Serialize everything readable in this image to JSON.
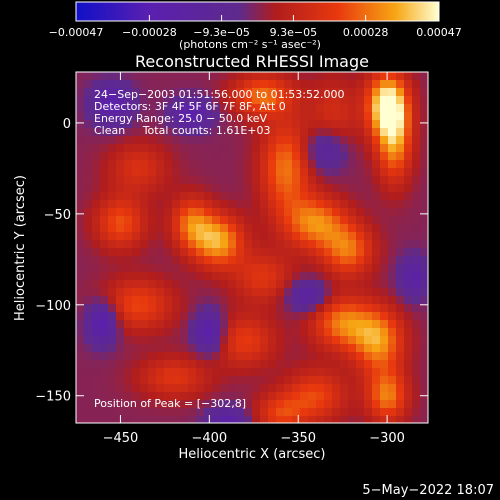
{
  "chart_data": {
    "type": "heatmap",
    "title": "Reconstructed RHESSI Image",
    "xlabel": "Heliocentric X (arcsec)",
    "ylabel": "Heliocentric Y (arcsec)",
    "xlim": [
      -475,
      -277
    ],
    "ylim": [
      -165,
      28
    ],
    "x_ticks": [
      -450,
      -400,
      -350,
      -300
    ],
    "y_ticks": [
      0,
      -50,
      -100,
      -150
    ],
    "x_tick_labels": [
      "−450",
      "−400",
      "−350",
      "−300"
    ],
    "y_tick_labels": [
      "0",
      "−50",
      "−100",
      "−150"
    ],
    "colorbar": {
      "range": [
        -0.00047,
        0.00047
      ],
      "ticks": [
        -0.00047,
        -0.00028,
        -9.3e-05,
        9.3e-05,
        0.00028,
        0.00047
      ],
      "tick_labels": [
        "−0.00047",
        "−0.00028",
        "−9.3e−05",
        "9.3e−05",
        "0.00028",
        "0.00047"
      ],
      "label": "(photons cm⁻² s⁻¹ asec⁻²)",
      "colors": [
        "#1010c8",
        "#5a1fb0",
        "#5e2a8c",
        "#b01d1d",
        "#e8380e",
        "#f7a614",
        "#ffffd2"
      ]
    },
    "annotations": {
      "time": "24−Sep−2003 01:51:56.000 to 01:53:52.000",
      "detectors": "Detectors: 3F 4F 5F 6F 7F 8F, Att 0",
      "energy": "Energy Range: 25.0 − 50.0 keV",
      "clean": "Clean     Total counts: 1.61E+03",
      "peak": "Position of Peak = [−302,8]"
    },
    "peak": {
      "x": -302,
      "y": 8
    },
    "hot_spots": [
      {
        "x": -300,
        "y": 10,
        "v": 0.00046,
        "sx": 8,
        "sy": 12
      },
      {
        "x": -296,
        "y": -10,
        "v": 0.00032,
        "sx": 7,
        "sy": 16
      },
      {
        "x": -370,
        "y": 15,
        "v": 0.00028,
        "sx": 12,
        "sy": 8
      },
      {
        "x": -357,
        "y": -25,
        "v": 0.00029,
        "sx": 10,
        "sy": 18
      },
      {
        "x": -340,
        "y": -55,
        "v": 0.00031,
        "sx": 12,
        "sy": 10
      },
      {
        "x": -322,
        "y": -70,
        "v": 0.00028,
        "sx": 10,
        "sy": 10
      },
      {
        "x": -395,
        "y": -65,
        "v": 0.00036,
        "sx": 10,
        "sy": 10
      },
      {
        "x": -410,
        "y": -55,
        "v": 0.00027,
        "sx": 8,
        "sy": 10
      },
      {
        "x": -450,
        "y": -55,
        "v": 0.00024,
        "sx": 10,
        "sy": 10
      },
      {
        "x": -440,
        "y": -100,
        "v": 0.00022,
        "sx": 14,
        "sy": 10
      },
      {
        "x": -380,
        "y": -120,
        "v": 0.0002,
        "sx": 12,
        "sy": 10
      },
      {
        "x": -420,
        "y": -140,
        "v": 0.00018,
        "sx": 14,
        "sy": 8
      },
      {
        "x": -325,
        "y": -110,
        "v": 0.0003,
        "sx": 12,
        "sy": 10
      },
      {
        "x": -305,
        "y": -120,
        "v": 0.00033,
        "sx": 10,
        "sy": 12
      },
      {
        "x": -300,
        "y": -150,
        "v": 0.0003,
        "sx": 8,
        "sy": 10
      },
      {
        "x": -340,
        "y": -150,
        "v": 0.00022,
        "sx": 12,
        "sy": 10
      },
      {
        "x": -360,
        "y": -160,
        "v": 0.0002,
        "sx": 10,
        "sy": 8
      },
      {
        "x": -370,
        "y": -85,
        "v": 0.00018,
        "sx": 12,
        "sy": 10
      },
      {
        "x": -440,
        "y": -25,
        "v": 0.00016,
        "sx": 12,
        "sy": 10
      },
      {
        "x": -330,
        "y": 5,
        "v": 0.00014,
        "sx": 10,
        "sy": 14
      }
    ],
    "cold_spots": [
      {
        "x": -460,
        "y": -110,
        "v": -0.0003,
        "sx": 6,
        "sy": 8
      },
      {
        "x": -455,
        "y": 10,
        "v": -0.00025,
        "sx": 8,
        "sy": 8
      },
      {
        "x": -410,
        "y": 5,
        "v": -0.00025,
        "sx": 8,
        "sy": 6
      },
      {
        "x": -400,
        "y": -115,
        "v": -0.00028,
        "sx": 6,
        "sy": 8
      },
      {
        "x": -345,
        "y": -95,
        "v": -0.00022,
        "sx": 8,
        "sy": 6
      },
      {
        "x": -335,
        "y": -15,
        "v": -0.0002,
        "sx": 8,
        "sy": 8
      },
      {
        "x": -285,
        "y": -85,
        "v": -0.0002,
        "sx": 6,
        "sy": 8
      },
      {
        "x": -390,
        "y": -165,
        "v": -0.00022,
        "sx": 8,
        "sy": 6
      }
    ]
  },
  "footer": {
    "date": "5−May−2022 18:07"
  }
}
